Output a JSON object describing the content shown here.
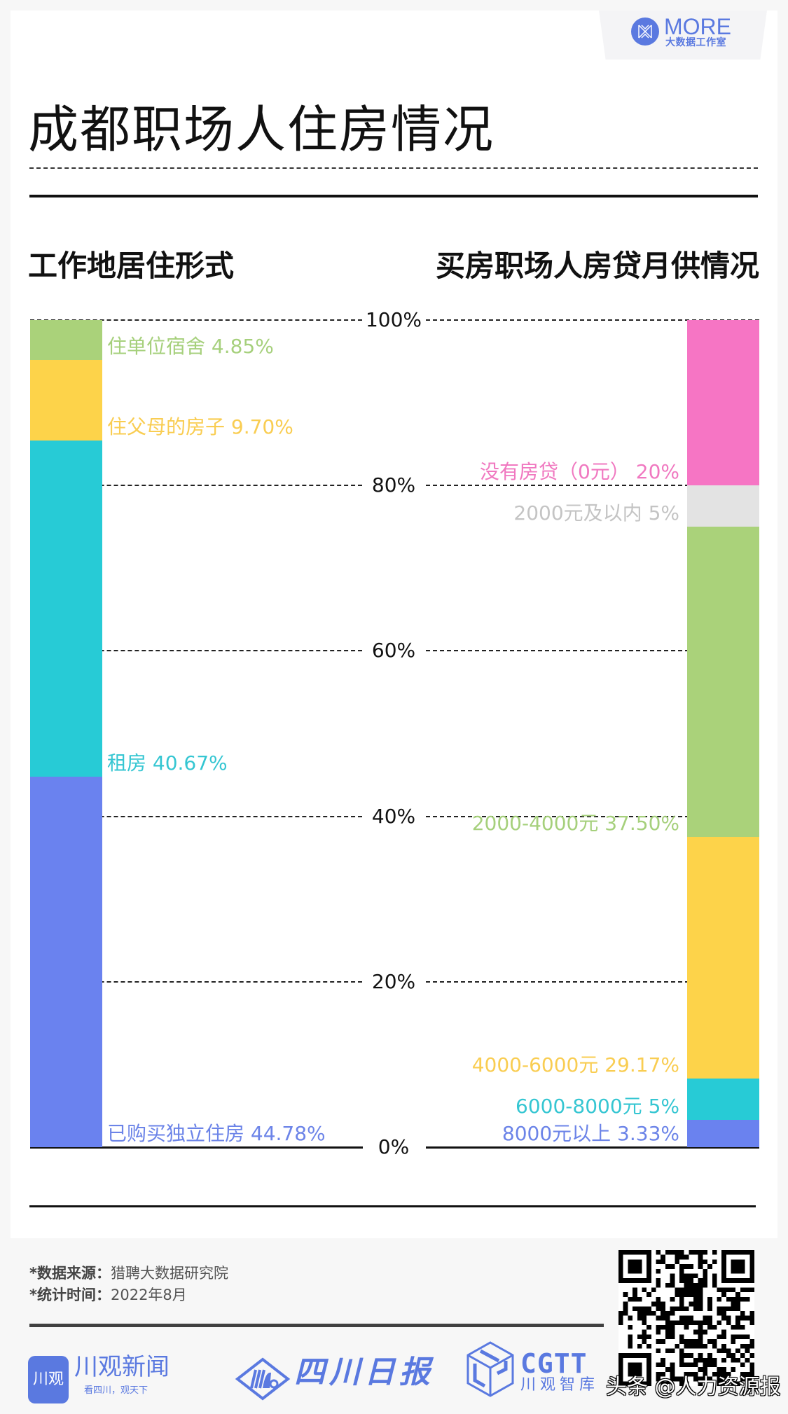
{
  "brand": {
    "name": "MORE",
    "subtitle": "大数据工作室"
  },
  "header": {
    "title": "成都职场人住房情况"
  },
  "sections": {
    "left_title": "工作地居住形式",
    "right_title": "买房职场人房贷月供情况"
  },
  "colors": {
    "green": "#aad27a",
    "yellow": "#fdd34a",
    "cyan": "#27cbd6",
    "blue": "#6a82ef",
    "pink": "#f675c4",
    "gray": "#e3e3e3",
    "label_gray": "#c4c4c4",
    "brand": "#5a79e0"
  },
  "chart_data": [
    {
      "type": "bar",
      "subtype": "stacked-100",
      "title": "工作地居住形式",
      "categories": [
        "住单位宿舍",
        "住父母的房子",
        "租房",
        "已购买独立住房"
      ],
      "values": [
        4.85,
        9.7,
        40.67,
        44.78
      ],
      "labels": [
        "住单位宿舍 4.85%",
        "住父母的房子 9.70%",
        "租房 40.67%",
        "已购买独立住房 44.78%"
      ],
      "colors": [
        "#aad27a",
        "#fdd34a",
        "#27cbd6",
        "#6a82ef"
      ],
      "label_colors": [
        "#a6d07c",
        "#f9cd52",
        "#35c6d2",
        "#6c84e8"
      ],
      "ylim": [
        0,
        100
      ],
      "yticks": [
        "0%",
        "20%",
        "40%",
        "60%",
        "80%",
        "100%"
      ],
      "grid": true,
      "stack_order": "top-to-bottom"
    },
    {
      "type": "bar",
      "subtype": "stacked-100",
      "title": "买房职场人房贷月供情况",
      "categories": [
        "没有房贷（0元）",
        "2000元及以内",
        "2000-4000元",
        "4000-6000元",
        "6000-8000元",
        "8000元以上"
      ],
      "values": [
        20,
        5,
        37.5,
        29.17,
        5,
        3.33
      ],
      "labels": [
        "没有房贷（0元） 20%",
        "2000元及以内 5%",
        "2000-4000元 37.50%",
        "4000-6000元 29.17%",
        "6000-8000元 5%",
        "8000元以上 3.33%"
      ],
      "colors": [
        "#f675c4",
        "#e3e3e3",
        "#aad27a",
        "#fdd34a",
        "#27cbd6",
        "#6a82ef"
      ],
      "label_colors": [
        "#f078c0",
        "#c4c4c4",
        "#a6d07c",
        "#f9cd52",
        "#35c6d2",
        "#6c84e8"
      ],
      "ylim": [
        0,
        100
      ],
      "yticks": [
        "0%",
        "20%",
        "40%",
        "60%",
        "80%",
        "100%"
      ],
      "grid": true,
      "stack_order": "top-to-bottom"
    }
  ],
  "axis": {
    "ticks": [
      "100%",
      "80%",
      "60%",
      "40%",
      "20%",
      "0%"
    ]
  },
  "footer": {
    "source_label": "*数据来源：",
    "source_value": "猎聘大数据研究院",
    "time_label": "*统计时间：",
    "time_value": "2022年8月",
    "logos": {
      "chuanguan_box": "川观",
      "chuanguan_name": "川观新闻",
      "chuanguan_slogan": "看四川，观天下",
      "sichuan_daily": "四川日报",
      "cgtt_name": "CGTT",
      "cgtt_sub": "川观智库"
    },
    "watermark": "头条 @人力资源报"
  }
}
